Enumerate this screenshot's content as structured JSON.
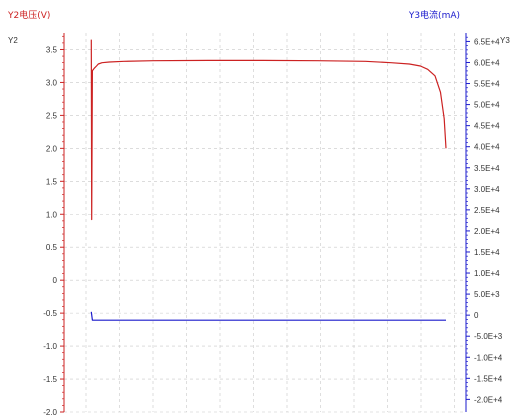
{
  "chart_data": {
    "type": "line",
    "left_axis": {
      "title": "Y2电压(V)",
      "corner_label": "Y2",
      "color": "#cc2222",
      "ylim": [
        -2.0,
        3.75
      ],
      "ticks": [
        "-2.0",
        "-1.5",
        "-1.0",
        "-0.5",
        "0",
        "0.5",
        "1.0",
        "1.5",
        "2.0",
        "2.5",
        "3.0",
        "3.5"
      ],
      "tick_values": [
        -2.0,
        -1.5,
        -1.0,
        -0.5,
        0,
        0.5,
        1.0,
        1.5,
        2.0,
        2.5,
        3.0,
        3.5
      ]
    },
    "right_axis": {
      "title": "Y3电流(mA)",
      "corner_label": "Y3",
      "color": "#1a1acc",
      "ylim": [
        -23000,
        67000
      ],
      "ticks": [
        "-2.0E+4",
        "-1.5E+4",
        "-1.0E+4",
        "-5.0E+3",
        "0",
        "5.0E+3",
        "1.0E+4",
        "1.5E+4",
        "2.0E+4",
        "2.5E+4",
        "3.0E+4",
        "3.5E+4",
        "4.0E+4",
        "4.5E+4",
        "5.0E+4",
        "5.5E+4",
        "6.0E+4",
        "6.5E+4"
      ],
      "tick_values": [
        -20000,
        -15000,
        -10000,
        -5000,
        0,
        5000,
        10000,
        15000,
        20000,
        25000,
        30000,
        35000,
        40000,
        45000,
        50000,
        55000,
        60000,
        65000
      ]
    },
    "xlim": [
      0,
      1
    ],
    "grid": true,
    "series": [
      {
        "axis": "left",
        "color": "#cc2222",
        "points": [
          [
            0.031,
            3.65
          ],
          [
            0.032,
            0.92
          ],
          [
            0.034,
            3.18
          ],
          [
            0.037,
            3.2
          ],
          [
            0.04,
            3.22
          ],
          [
            0.045,
            3.25
          ],
          [
            0.05,
            3.28
          ],
          [
            0.06,
            3.3
          ],
          [
            0.08,
            3.31
          ],
          [
            0.12,
            3.32
          ],
          [
            0.2,
            3.33
          ],
          [
            0.35,
            3.335
          ],
          [
            0.5,
            3.335
          ],
          [
            0.65,
            3.33
          ],
          [
            0.78,
            3.32
          ],
          [
            0.85,
            3.3
          ],
          [
            0.9,
            3.28
          ],
          [
            0.93,
            3.25
          ],
          [
            0.95,
            3.2
          ],
          [
            0.97,
            3.1
          ],
          [
            0.985,
            2.85
          ],
          [
            0.995,
            2.45
          ],
          [
            1.0,
            2.0
          ]
        ]
      },
      {
        "axis": "right",
        "color": "#1a1acc",
        "points": [
          [
            0.031,
            800
          ],
          [
            0.034,
            -1200
          ],
          [
            0.04,
            -1200
          ],
          [
            1.0,
            -1200
          ]
        ]
      }
    ]
  }
}
